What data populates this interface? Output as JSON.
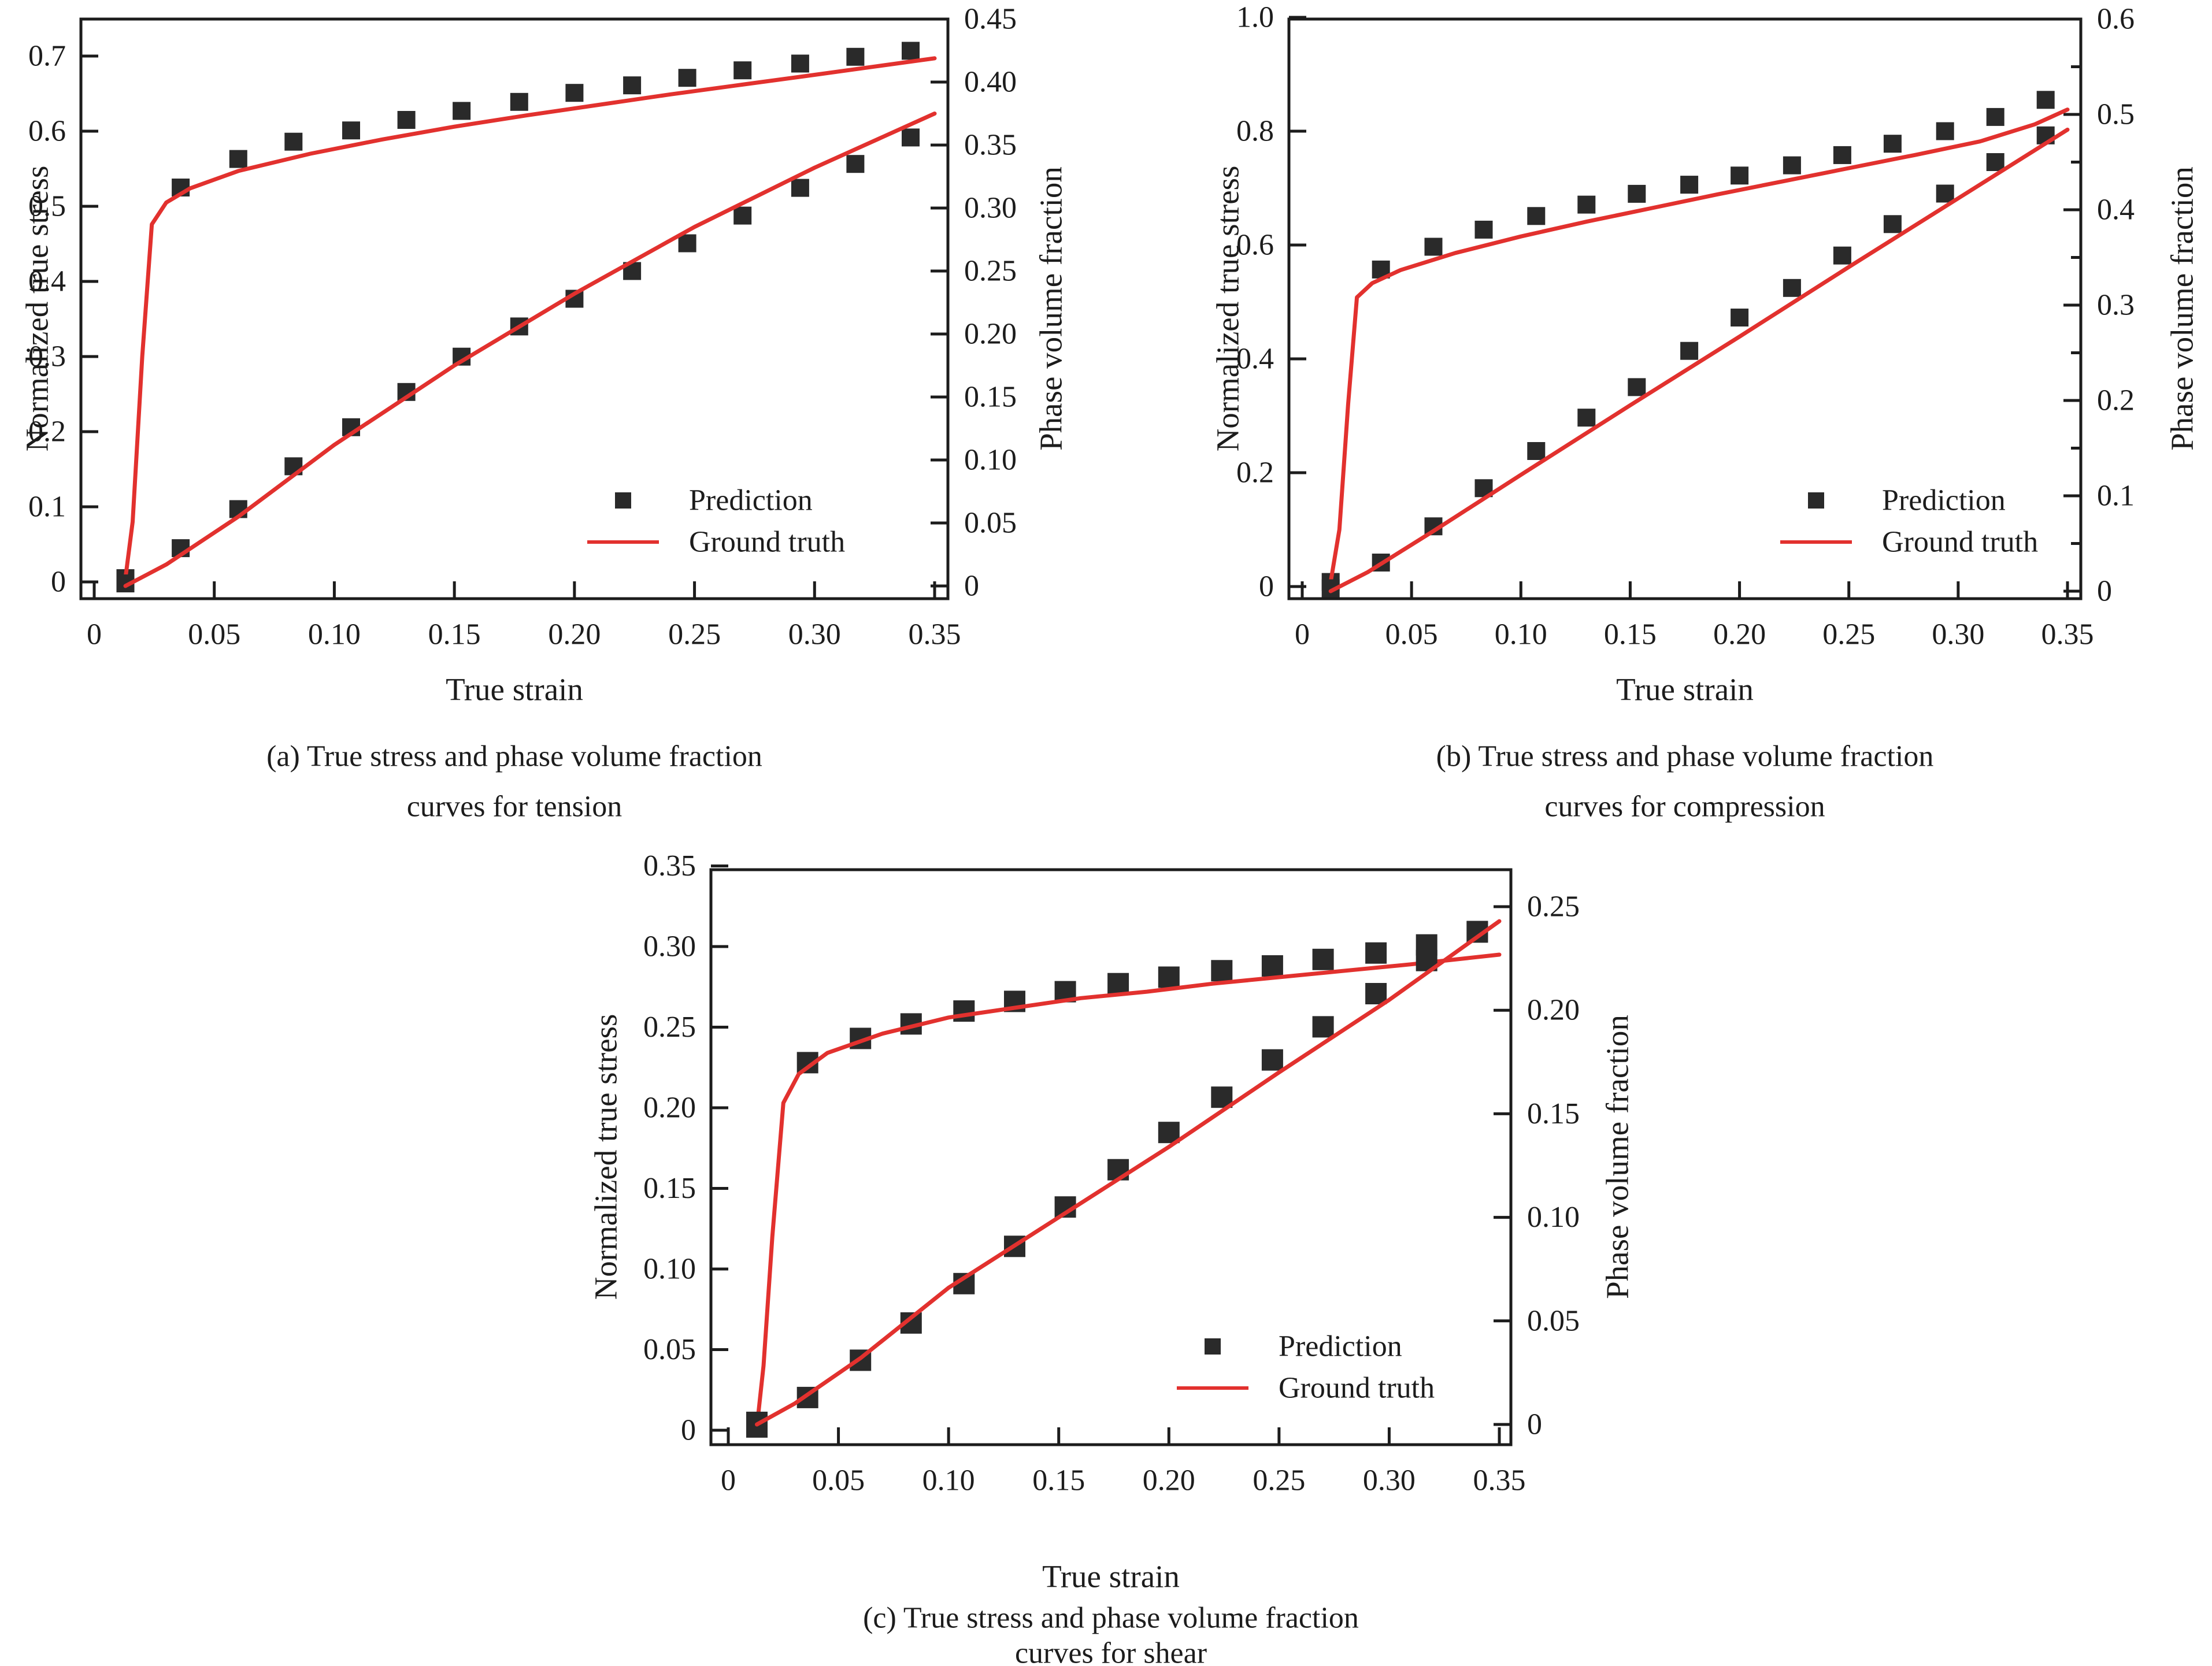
{
  "figure": {
    "background": "#ffffff",
    "text_color": "#1c1c1c",
    "accent_red": "#e2312e",
    "marker_color": "#2a2a2a"
  },
  "chart_data": [
    {
      "id": "a",
      "type": "scatter+line",
      "caption": [
        "(a) True stress and phase volume fraction",
        "curves for tension"
      ],
      "xlabel": "True strain",
      "ylabel_left": "Normalized true stress",
      "ylabel_right": "Phase volume fraction",
      "xlim": [
        0,
        0.35
      ],
      "ylim_left": [
        0,
        0.75
      ],
      "ylim_right": [
        0,
        0.45
      ],
      "grid": false,
      "legend_position": "lower right",
      "x_ticks": [
        "0",
        "0.05",
        "0.10",
        "0.15",
        "0.20",
        "0.25",
        "0.30",
        "0.35"
      ],
      "left_ticks": [
        "0",
        "0.1",
        "0.2",
        "0.3",
        "0.4",
        "0.5",
        "0.6",
        "0.7"
      ],
      "right_ticks": [
        "0",
        "0.05",
        "0.10",
        "0.15",
        "0.20",
        "0.25",
        "0.30",
        "0.35",
        "0.40",
        "0.45"
      ],
      "legend": [
        "Prediction",
        "Ground truth"
      ],
      "series": [
        {
          "name": "Normalized true stress - prediction",
          "kind": "scatter",
          "axis": "left",
          "x": [
            0.013,
            0.036,
            0.06,
            0.083,
            0.107,
            0.13,
            0.153,
            0.177,
            0.2,
            0.224,
            0.247,
            0.27,
            0.294,
            0.317,
            0.34
          ],
          "y": [
            0.005,
            0.525,
            0.563,
            0.586,
            0.601,
            0.615,
            0.627,
            0.639,
            0.651,
            0.661,
            0.671,
            0.681,
            0.69,
            0.699,
            0.707
          ]
        },
        {
          "name": "Normalized true stress - ground truth",
          "kind": "line",
          "axis": "left",
          "x": [
            0.013,
            0.016,
            0.02,
            0.024,
            0.03,
            0.04,
            0.06,
            0.09,
            0.12,
            0.15,
            0.18,
            0.21,
            0.24,
            0.27,
            0.3,
            0.325,
            0.35
          ],
          "y": [
            0.005,
            0.08,
            0.3,
            0.476,
            0.505,
            0.524,
            0.547,
            0.57,
            0.589,
            0.606,
            0.621,
            0.635,
            0.649,
            0.662,
            0.675,
            0.686,
            0.697
          ]
        },
        {
          "name": "Phase volume fraction - prediction",
          "kind": "scatter",
          "axis": "right",
          "x": [
            0.013,
            0.036,
            0.06,
            0.083,
            0.107,
            0.13,
            0.153,
            0.177,
            0.2,
            0.224,
            0.247,
            0.27,
            0.294,
            0.317,
            0.34
          ],
          "y": [
            0.002,
            0.03,
            0.061,
            0.095,
            0.126,
            0.154,
            0.182,
            0.206,
            0.228,
            0.25,
            0.272,
            0.294,
            0.316,
            0.335,
            0.356
          ]
        },
        {
          "name": "Phase volume fraction - ground truth",
          "kind": "line",
          "axis": "right",
          "x": [
            0.013,
            0.03,
            0.06,
            0.1,
            0.15,
            0.2,
            0.25,
            0.3,
            0.35
          ],
          "y": [
            0.0,
            0.017,
            0.055,
            0.112,
            0.175,
            0.232,
            0.285,
            0.332,
            0.375
          ]
        }
      ]
    },
    {
      "id": "b",
      "type": "scatter+line",
      "caption": [
        "(b) True stress and phase volume fraction",
        "curves for compression"
      ],
      "xlabel": "True strain",
      "ylabel_left": "Normalized true stress",
      "ylabel_right": "Phase volume fraction",
      "xlim": [
        0,
        0.35
      ],
      "ylim_left": [
        0,
        1.0
      ],
      "ylim_right": [
        0,
        0.6
      ],
      "grid": false,
      "legend_position": "lower right",
      "x_ticks": [
        "0",
        "0.05",
        "0.10",
        "0.15",
        "0.20",
        "0.25",
        "0.30",
        "0.35"
      ],
      "left_ticks": [
        "0",
        "0.2",
        "0.4",
        "0.6",
        "0.8",
        "1.0"
      ],
      "right_ticks": [
        "0",
        "0.1",
        "0.2",
        "0.3",
        "0.4",
        "0.5",
        "0.6"
      ],
      "legend": [
        "Prediction",
        "Ground truth"
      ],
      "series": [
        {
          "name": "Normalized true stress - prediction",
          "kind": "scatter",
          "axis": "left",
          "x": [
            0.013,
            0.036,
            0.06,
            0.083,
            0.107,
            0.13,
            0.153,
            0.177,
            0.2,
            0.224,
            0.247,
            0.27,
            0.294,
            0.317,
            0.34
          ],
          "y": [
            0.008,
            0.557,
            0.597,
            0.627,
            0.651,
            0.671,
            0.69,
            0.706,
            0.722,
            0.74,
            0.758,
            0.778,
            0.8,
            0.825,
            0.855
          ]
        },
        {
          "name": "Normalized true stress - ground truth",
          "kind": "line",
          "axis": "left",
          "x": [
            0.013,
            0.017,
            0.021,
            0.025,
            0.032,
            0.045,
            0.07,
            0.1,
            0.13,
            0.16,
            0.19,
            0.22,
            0.25,
            0.28,
            0.31,
            0.335,
            0.35
          ],
          "y": [
            0.008,
            0.1,
            0.32,
            0.508,
            0.533,
            0.556,
            0.586,
            0.615,
            0.641,
            0.665,
            0.689,
            0.712,
            0.735,
            0.758,
            0.782,
            0.812,
            0.838
          ]
        },
        {
          "name": "Phase volume fraction - prediction",
          "kind": "scatter",
          "axis": "right",
          "x": [
            0.013,
            0.036,
            0.06,
            0.083,
            0.107,
            0.13,
            0.153,
            0.177,
            0.2,
            0.224,
            0.247,
            0.27,
            0.294,
            0.317,
            0.34
          ],
          "y": [
            0.003,
            0.03,
            0.068,
            0.108,
            0.147,
            0.182,
            0.214,
            0.252,
            0.287,
            0.318,
            0.352,
            0.385,
            0.417,
            0.45,
            0.478
          ]
        },
        {
          "name": "Phase volume fraction - ground truth",
          "kind": "line",
          "axis": "right",
          "x": [
            0.013,
            0.03,
            0.06,
            0.1,
            0.15,
            0.2,
            0.25,
            0.3,
            0.35
          ],
          "y": [
            0.0,
            0.02,
            0.063,
            0.122,
            0.195,
            0.267,
            0.34,
            0.412,
            0.484
          ]
        }
      ]
    },
    {
      "id": "c",
      "type": "scatter+line",
      "caption": [
        "(c) True stress and phase volume fraction",
        "curves for shear"
      ],
      "xlabel": "True strain",
      "ylabel_left": "Normalized true stress",
      "ylabel_right": "Phase volume fraction",
      "xlim": [
        0,
        0.35
      ],
      "ylim_left": [
        0,
        0.35
      ],
      "ylim_right": [
        0,
        0.27
      ],
      "grid": false,
      "legend_position": "lower right",
      "x_ticks": [
        "0",
        "0.05",
        "0.10",
        "0.15",
        "0.20",
        "0.25",
        "0.30",
        "0.35"
      ],
      "left_ticks": [
        "0",
        "0.05",
        "0.10",
        "0.15",
        "0.20",
        "0.25",
        "0.30",
        "0.35"
      ],
      "right_ticks": [
        "0",
        "0.05",
        "0.10",
        "0.15",
        "0.20",
        "0.25"
      ],
      "legend": [
        "Prediction",
        "Ground truth"
      ],
      "series": [
        {
          "name": "Normalized true stress - prediction",
          "kind": "scatter",
          "axis": "left",
          "x": [
            0.013,
            0.036,
            0.06,
            0.083,
            0.107,
            0.13,
            0.153,
            0.177,
            0.2,
            0.224,
            0.247,
            0.27,
            0.294,
            0.317,
            0.34
          ],
          "y": [
            0.002,
            0.228,
            0.243,
            0.252,
            0.26,
            0.266,
            0.272,
            0.277,
            0.281,
            0.285,
            0.288,
            0.292,
            0.296,
            0.301,
            0.309
          ]
        },
        {
          "name": "Normalized true stress - ground truth",
          "kind": "line",
          "axis": "left",
          "x": [
            0.013,
            0.016,
            0.02,
            0.025,
            0.032,
            0.045,
            0.07,
            0.1,
            0.13,
            0.16,
            0.19,
            0.22,
            0.25,
            0.28,
            0.31,
            0.35
          ],
          "y": [
            0.002,
            0.04,
            0.12,
            0.203,
            0.221,
            0.234,
            0.246,
            0.256,
            0.262,
            0.268,
            0.272,
            0.277,
            0.281,
            0.285,
            0.289,
            0.295
          ]
        },
        {
          "name": "Phase volume fraction - prediction",
          "kind": "scatter",
          "axis": "right",
          "x": [
            0.013,
            0.036,
            0.06,
            0.083,
            0.107,
            0.13,
            0.153,
            0.177,
            0.2,
            0.224,
            0.247,
            0.27,
            0.294,
            0.317,
            0.34
          ],
          "y": [
            0.001,
            0.013,
            0.031,
            0.049,
            0.068,
            0.086,
            0.105,
            0.123,
            0.141,
            0.158,
            0.176,
            0.192,
            0.208,
            0.224,
            0.238
          ]
        },
        {
          "name": "Phase volume fraction - ground truth",
          "kind": "line",
          "axis": "right",
          "x": [
            0.013,
            0.03,
            0.06,
            0.1,
            0.15,
            0.2,
            0.25,
            0.3,
            0.35
          ],
          "y": [
            0.0,
            0.01,
            0.032,
            0.066,
            0.1,
            0.134,
            0.17,
            0.205,
            0.243
          ]
        }
      ]
    }
  ]
}
